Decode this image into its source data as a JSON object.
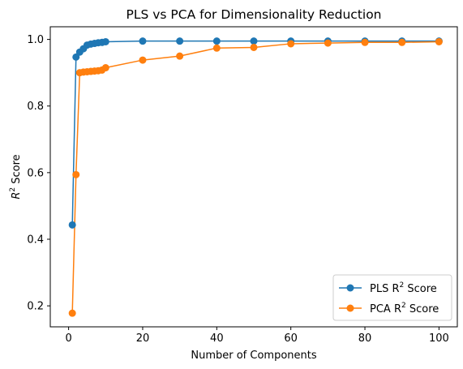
{
  "chart_data": {
    "type": "line",
    "title": "PLS vs PCA for Dimensionality Reduction",
    "xlabel": "Number of Components",
    "ylabel_prefix": "R",
    "ylabel_sup": "2",
    "ylabel_suffix": " Score",
    "xlim": [
      -4.95,
      104.95
    ],
    "ylim": [
      0.137,
      1.038
    ],
    "xticks": [
      0,
      20,
      40,
      60,
      80,
      100
    ],
    "yticks": [
      0.2,
      0.4,
      0.6,
      0.8,
      1.0
    ],
    "ytick_labels": [
      "0.2",
      "0.4",
      "0.6",
      "0.8",
      "1.0"
    ],
    "grid": false,
    "legend_position": "lower-right",
    "x": [
      1,
      2,
      3,
      4,
      5,
      6,
      7,
      8,
      9,
      10,
      20,
      30,
      40,
      50,
      60,
      70,
      80,
      90,
      100
    ],
    "series": [
      {
        "name_prefix": "PLS R",
        "name_sup": "2",
        "name_suffix": " Score",
        "color": "#1f77b4",
        "values": [
          0.443,
          0.947,
          0.962,
          0.972,
          0.983,
          0.986,
          0.988,
          0.99,
          0.991,
          0.993,
          0.995,
          0.995,
          0.995,
          0.995,
          0.995,
          0.995,
          0.995,
          0.995,
          0.995
        ]
      },
      {
        "name_prefix": "PCA R",
        "name_sup": "2",
        "name_suffix": " Score",
        "color": "#ff7f0e",
        "values": [
          0.178,
          0.594,
          0.9,
          0.902,
          0.903,
          0.904,
          0.905,
          0.906,
          0.908,
          0.915,
          0.938,
          0.95,
          0.974,
          0.976,
          0.987,
          0.989,
          0.991,
          0.991,
          0.993
        ]
      }
    ]
  }
}
